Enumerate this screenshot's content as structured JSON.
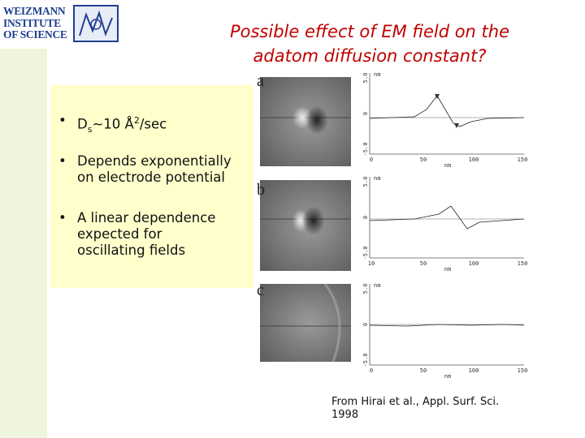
{
  "logo": {
    "lines": [
      "WEIZMANN",
      "INSTITUTE",
      "OF SCIENCE"
    ]
  },
  "title": {
    "lines": [
      "Possible effect of EM field on the",
      "adatom diffusion constant?"
    ]
  },
  "bullets": [
    {
      "main": "D",
      "subscript": "s",
      "mid": "~10 Å",
      "superscript": "2",
      "end": "/sec"
    },
    {
      "lines": [
        "Depends exponentially",
        "on electrode potential"
      ]
    },
    {
      "lines": [
        "A linear dependence",
        "expected for",
        "oscillating fields"
      ]
    }
  ],
  "figure": {
    "panels": [
      {
        "label": "a",
        "x_ticks": [
          "0",
          "50",
          "100",
          "150"
        ],
        "y_ticks": [
          "5.0",
          "0",
          "-5.0"
        ],
        "unit": "nm"
      },
      {
        "label": "b",
        "x_ticks": [
          "10",
          "50",
          "100",
          "150"
        ],
        "y_ticks": [
          "5.0",
          "0",
          "-5.0"
        ],
        "unit": "nm"
      },
      {
        "label": "c",
        "x_ticks": [
          "0",
          "50",
          "100",
          "150"
        ],
        "y_ticks": [
          "5.0",
          "0",
          "-5.0"
        ],
        "unit": "nm"
      }
    ]
  },
  "citation": {
    "lines": [
      "From Hirai et al., Appl. Surf. Sci.",
      "1998"
    ]
  }
}
